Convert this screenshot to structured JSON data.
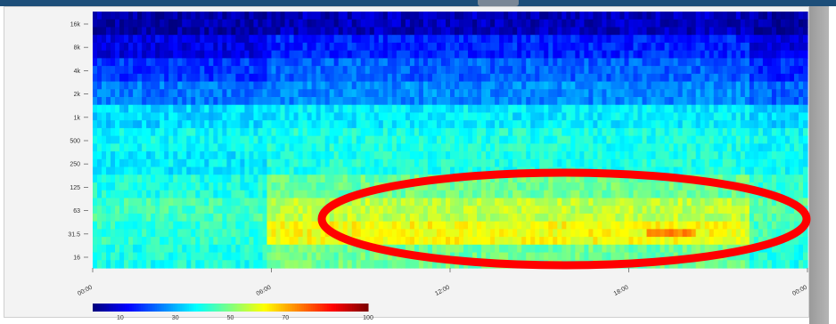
{
  "chart_data": {
    "type": "heatmap",
    "title": "",
    "xlabel": "",
    "ylabel": "",
    "x_ticks": [
      "00:00",
      "06:00",
      "12:00",
      "18:00",
      "00:00"
    ],
    "x_range_hours": [
      0,
      24
    ],
    "y_ticks": [
      "16k",
      "8k",
      "4k",
      "2k",
      "1k",
      "500",
      "250",
      "125",
      "63",
      "31.5",
      "16"
    ],
    "colorbar": {
      "ticks": [
        "10",
        "30",
        "50",
        "70",
        "100"
      ],
      "tick_values": [
        10,
        30,
        50,
        70,
        100
      ],
      "range": [
        0,
        100
      ],
      "colormap": "jet"
    },
    "approx_levels_by_band": {
      "bands": [
        "16k",
        "8k",
        "4k",
        "2k",
        "1k",
        "500",
        "250",
        "125",
        "63",
        "31.5",
        "16"
      ],
      "night_00_06": [
        4,
        10,
        18,
        24,
        34,
        38,
        36,
        40,
        44,
        42,
        40
      ],
      "day_06_22": [
        6,
        16,
        22,
        26,
        36,
        40,
        40,
        48,
        56,
        62,
        48
      ],
      "late_22_24": [
        4,
        10,
        16,
        22,
        34,
        38,
        38,
        42,
        46,
        44,
        40
      ]
    },
    "annotations": [
      {
        "type": "ellipse",
        "color": "#ff0000",
        "description": "highlighted region of elevated low-frequency levels"
      }
    ],
    "grid": false
  }
}
